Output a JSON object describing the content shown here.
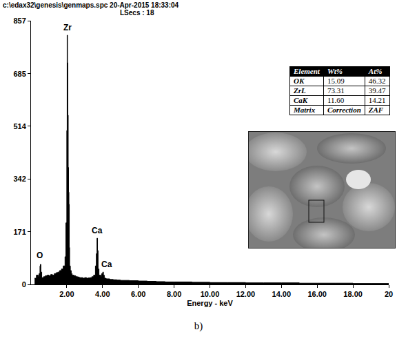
{
  "chart_data": {
    "type": "area",
    "color": "#000000",
    "x_label": "Energy - keV",
    "x": [
      0.2,
      0.3,
      0.4,
      0.45,
      0.5,
      0.52,
      0.55,
      0.6,
      0.7,
      0.8,
      0.9,
      1.0,
      1.1,
      1.2,
      1.3,
      1.4,
      1.5,
      1.6,
      1.7,
      1.8,
      1.9,
      1.95,
      2.0,
      2.02,
      2.04,
      2.06,
      2.08,
      2.1,
      2.12,
      2.14,
      2.16,
      2.2,
      2.25,
      2.3,
      2.4,
      2.5,
      2.6,
      2.7,
      2.8,
      2.9,
      3.0,
      3.1,
      3.2,
      3.3,
      3.4,
      3.5,
      3.6,
      3.65,
      3.69,
      3.72,
      3.75,
      3.8,
      3.9,
      3.95,
      4.01,
      4.05,
      4.1,
      4.2,
      4.4,
      4.6,
      4.8,
      5.0,
      5.5,
      6.0,
      6.5,
      7.0,
      7.5,
      8.0,
      9,
      10,
      11,
      12,
      13,
      14,
      15,
      16,
      17,
      18,
      19,
      20
    ],
    "values": [
      20,
      30,
      25,
      35,
      60,
      65,
      40,
      22,
      25,
      28,
      30,
      28,
      32,
      30,
      35,
      38,
      40,
      45,
      50,
      60,
      90,
      200,
      500,
      810,
      720,
      550,
      380,
      300,
      260,
      120,
      60,
      45,
      35,
      30,
      28,
      25,
      24,
      22,
      22,
      20,
      22,
      20,
      21,
      22,
      25,
      30,
      60,
      100,
      150,
      110,
      50,
      30,
      25,
      35,
      40,
      30,
      20,
      18,
      16,
      15,
      14,
      13,
      12,
      11,
      10,
      9,
      8,
      8,
      7,
      6,
      6,
      5,
      5,
      5,
      4,
      4,
      4,
      3,
      3,
      3
    ],
    "xlim": [
      0,
      20
    ],
    "xticks": [
      {
        "value": 2,
        "label": "2.00"
      },
      {
        "value": 4,
        "label": "4.00"
      },
      {
        "value": 6,
        "label": "6.00"
      },
      {
        "value": 8,
        "label": "8.00"
      },
      {
        "value": 10,
        "label": "10.00"
      },
      {
        "value": 12,
        "label": "12.00"
      },
      {
        "value": 14,
        "label": "14.00"
      },
      {
        "value": 16,
        "label": "16.00"
      },
      {
        "value": 18,
        "label": "18.00"
      },
      20
    ],
    "ylim": [
      0,
      857
    ],
    "yticks": [
      0,
      171,
      342,
      514,
      685,
      857
    ],
    "grid": false,
    "annotations": [
      {
        "text": "Zr",
        "x": 2.04,
        "y": 815
      },
      {
        "text": "Ca",
        "x": 3.69,
        "y": 155
      },
      {
        "text": "Ca",
        "x": 4.25,
        "y": 45
      },
      {
        "text": "O",
        "x": 0.5,
        "y": 75
      }
    ]
  },
  "file_header": [
    "c:\\edax32\\genesis\\genmaps.spc  20-Apr-2015 18:33:04",
    "LSecs : 18"
  ],
  "table": {
    "header": [
      "Element",
      "Wt%",
      "At%"
    ],
    "rows": [
      [
        "OK",
        "15.09",
        "46.32"
      ],
      [
        "ZrL",
        "73.31",
        "39.47"
      ],
      [
        "CaK",
        "11.60",
        "14.21"
      ],
      [
        "Matrix",
        "Correction",
        "ZAF"
      ]
    ]
  },
  "caption": "b)"
}
